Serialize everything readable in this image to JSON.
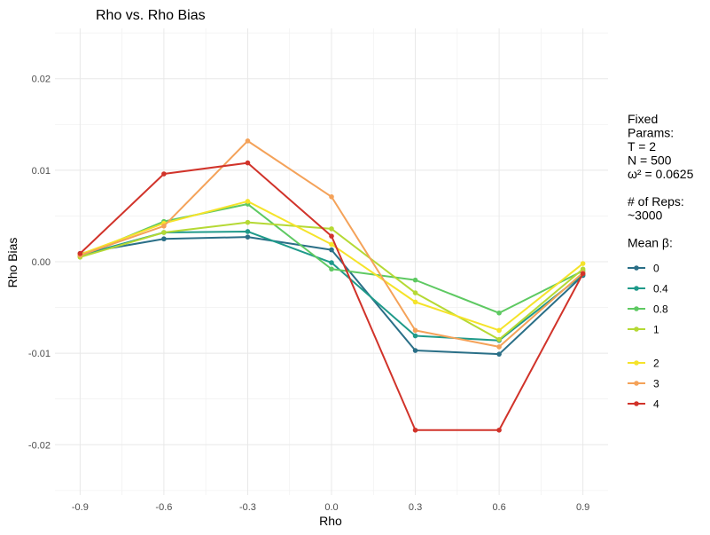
{
  "chart_data": {
    "type": "line",
    "title": "Rho vs. Rho Bias",
    "xlabel": "Rho",
    "ylabel": "Rho Bias",
    "x": [
      -0.9,
      -0.6,
      -0.3,
      0.0,
      0.3,
      0.6,
      0.9
    ],
    "x_tick_labels": [
      "-0.9",
      "-0.6",
      "-0.3",
      "0.0",
      "0.3",
      "0.6",
      "0.9"
    ],
    "y_tick_values": [
      -0.02,
      -0.01,
      0.0,
      0.01,
      0.02
    ],
    "y_tick_labels": [
      "-0.02",
      "-0.01",
      "0.00",
      "0.01",
      "0.02"
    ],
    "xlim": [
      -0.99,
      0.99
    ],
    "ylim": [
      -0.0255,
      0.0255
    ],
    "grid": true,
    "legend_position": "right",
    "legend_text": [
      "Fixed",
      "Params:",
      "T = 2",
      "N = 500",
      "ω² = 0.0625",
      "",
      "# of Reps:",
      "~3000",
      "",
      "Mean β:"
    ],
    "series": [
      {
        "name": "0",
        "color": "#2a6f87",
        "values": [
          0.0009,
          0.0025,
          0.0027,
          0.0013,
          -0.0097,
          -0.0101,
          -0.0015
        ]
      },
      {
        "name": "0.4",
        "color": "#1f9a8a",
        "values": [
          0.0007,
          0.0032,
          0.0033,
          -0.0001,
          -0.0081,
          -0.0086,
          -0.0014
        ]
      },
      {
        "name": "0.8",
        "color": "#5ec962",
        "values": [
          0.0006,
          0.0044,
          0.0063,
          -0.0008,
          -0.002,
          -0.0056,
          -0.001
        ]
      },
      {
        "name": "1",
        "color": "#b5d934",
        "values": [
          0.0005,
          0.0032,
          0.0043,
          0.0036,
          -0.0034,
          -0.0085,
          -0.0008
        ]
      },
      {
        "name": "2",
        "color": "#f5e32a",
        "values": [
          0.0008,
          0.0042,
          0.0066,
          0.0019,
          -0.0044,
          -0.0075,
          -0.0002
        ]
      },
      {
        "name": "3",
        "color": "#f4a259",
        "values": [
          0.0007,
          0.0039,
          0.0132,
          0.0071,
          -0.0075,
          -0.0093,
          -0.0012
        ]
      },
      {
        "name": "4",
        "color": "#d1332a",
        "values": [
          0.0009,
          0.0096,
          0.0108,
          0.0028,
          -0.0184,
          -0.0184,
          -0.0013
        ]
      }
    ]
  }
}
